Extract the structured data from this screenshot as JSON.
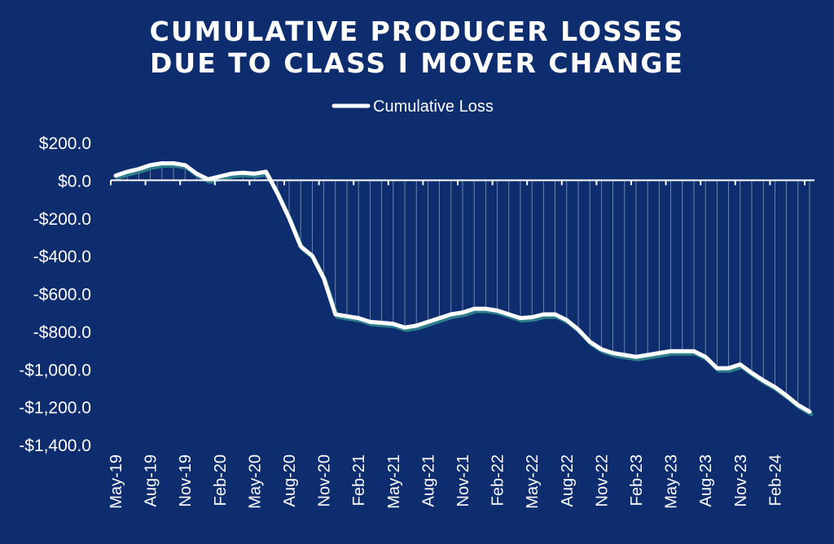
{
  "chart_data": {
    "type": "area",
    "title": [
      "CUMULATIVE PRODUCER LOSSES",
      "DUE TO CLASS I MOVER CHANGE"
    ],
    "legend": {
      "position": "top-center",
      "entries": [
        "Cumulative Loss"
      ]
    },
    "ylim": [
      -1400,
      200
    ],
    "yticks": [
      200,
      0,
      -200,
      -400,
      -600,
      -800,
      -1000,
      -1200,
      -1400
    ],
    "ytick_labels": [
      "$200.0",
      "$0.0",
      "-$200.0",
      "-$400.0",
      "-$600.0",
      "-$800.0",
      "-$1,000.0",
      "-$1,200.0",
      "-$1,400.0"
    ],
    "xtick_labels": [
      "May-19",
      "Aug-19",
      "Nov-19",
      "Feb-20",
      "May-20",
      "Aug-20",
      "Nov-20",
      "Feb-21",
      "May-21",
      "Aug-21",
      "Nov-21",
      "Feb-22",
      "May-22",
      "Aug-22",
      "Nov-22",
      "Feb-23",
      "May-23",
      "Aug-23",
      "Nov-23",
      "Feb-24"
    ],
    "xtick_every": 3,
    "colors": {
      "background": "#0e2d6e",
      "line": "#ffffff",
      "shadow": "#2e7d8a",
      "fill": "#ffffff"
    },
    "series": [
      {
        "name": "Cumulative Loss",
        "x": [
          "May-19",
          "Jun-19",
          "Jul-19",
          "Aug-19",
          "Sep-19",
          "Oct-19",
          "Nov-19",
          "Dec-19",
          "Jan-20",
          "Feb-20",
          "Mar-20",
          "Apr-20",
          "May-20",
          "Jun-20",
          "Jul-20",
          "Aug-20",
          "Sep-20",
          "Oct-20",
          "Nov-20",
          "Dec-20",
          "Jan-21",
          "Feb-21",
          "Mar-21",
          "Apr-21",
          "May-21",
          "Jun-21",
          "Jul-21",
          "Aug-21",
          "Sep-21",
          "Oct-21",
          "Nov-21",
          "Dec-21",
          "Jan-22",
          "Feb-22",
          "Mar-22",
          "Apr-22",
          "May-22",
          "Jun-22",
          "Jul-22",
          "Aug-22",
          "Sep-22",
          "Oct-22",
          "Nov-22",
          "Dec-22",
          "Jan-23",
          "Feb-23",
          "Mar-23",
          "Apr-23",
          "May-23",
          "Jun-23",
          "Jul-23",
          "Aug-23",
          "Sep-23",
          "Oct-23",
          "Nov-23",
          "Dec-23",
          "Jan-24",
          "Feb-24",
          "Mar-24",
          "Apr-24",
          "May-24"
        ],
        "values": [
          25,
          45,
          60,
          80,
          90,
          90,
          80,
          35,
          5,
          20,
          35,
          40,
          35,
          45,
          -70,
          -200,
          -350,
          -400,
          -520,
          -710,
          -720,
          -730,
          -750,
          -755,
          -760,
          -780,
          -770,
          -750,
          -730,
          -710,
          -700,
          -680,
          -680,
          -690,
          -710,
          -730,
          -725,
          -710,
          -710,
          -740,
          -790,
          -855,
          -895,
          -915,
          -925,
          -935,
          -925,
          -915,
          -905,
          -905,
          -905,
          -935,
          -995,
          -995,
          -975,
          -1020,
          -1060,
          -1095,
          -1140,
          -1190,
          -1225
        ]
      }
    ]
  }
}
